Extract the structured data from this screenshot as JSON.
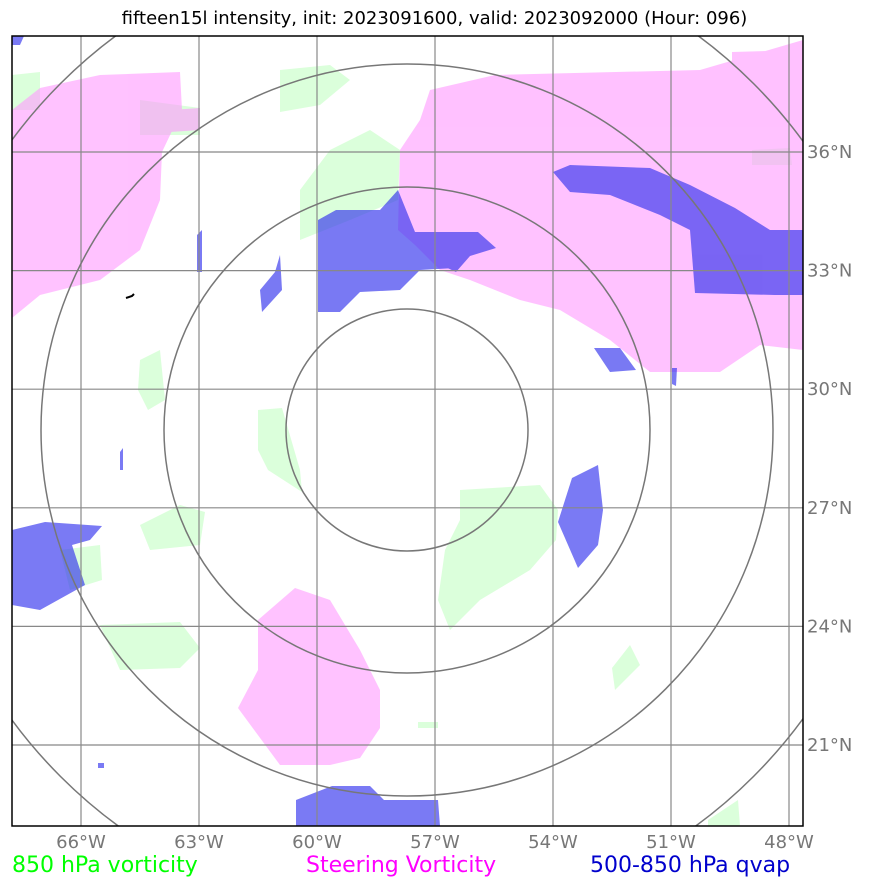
{
  "title": "fifteen15l intensity, init: 2023091600, valid: 2023092000 (Hour: 096)",
  "colors": {
    "vort850": "#ccffcc",
    "steering": "#ff99ff",
    "qvap": "#3333ee",
    "grid": "#888888",
    "rings": "#777777",
    "frame": "#000000",
    "tick_label": "#777777",
    "legend_green": "#00ff00",
    "legend_magenta": "#ff00ff",
    "legend_blue": "#0000cc"
  },
  "map": {
    "lon_labels": [
      "66°W",
      "63°W",
      "60°W",
      "57°W",
      "54°W",
      "51°W",
      "48°W"
    ],
    "lat_labels": [
      "36°N",
      "33°N",
      "30°N",
      "27°N",
      "24°N",
      "21°N"
    ],
    "longitudes_deg_w": [
      66,
      63,
      60,
      57,
      54,
      51,
      48
    ],
    "latitudes_deg_n": [
      36,
      33,
      30,
      27,
      24,
      21
    ],
    "ring_count": 4
  },
  "legend": {
    "vort850": "850 hPa vorticity",
    "steering": "Steering Vorticity",
    "qvap": "500-850 hPa qvap"
  }
}
